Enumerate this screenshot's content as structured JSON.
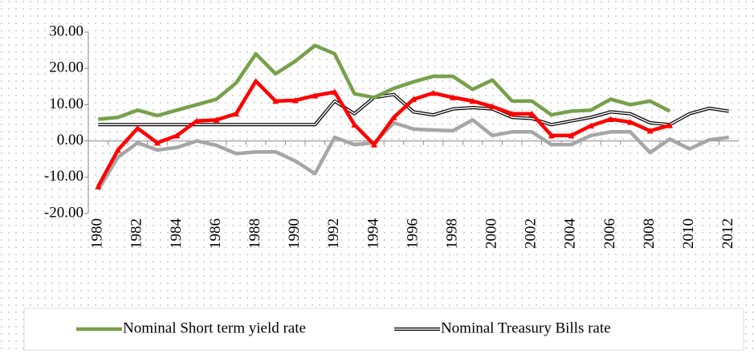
{
  "chart_data": {
    "type": "line",
    "categories": [
      "1980",
      null,
      "1982",
      null,
      "1984",
      null,
      "1986",
      null,
      "1988",
      null,
      "1990",
      null,
      "1992",
      null,
      "1994",
      null,
      "1996",
      null,
      "1998",
      null,
      "2000",
      null,
      "2002",
      null,
      "2004",
      null,
      "2006",
      null,
      "2008",
      null,
      "2010",
      null,
      "2012"
    ],
    "series": [
      {
        "name": "Nominal Short term yield rate",
        "color": "#77a04a",
        "values": [
          6,
          6.5,
          8.5,
          7,
          8.5,
          10,
          11.5,
          16,
          24,
          18.5,
          22,
          26.3,
          24,
          13,
          12,
          14.5,
          16.3,
          17.8,
          17.8,
          14.2,
          16.8,
          11,
          11,
          7.2,
          8.2,
          8.5,
          11.5,
          10,
          11,
          8.2,
          null,
          null,
          null
        ]
      },
      {
        "name": "Nominal Treasury Bills rate",
        "color": "#000000",
        "values": [
          4.5,
          4.5,
          4.5,
          4.5,
          4.5,
          4.5,
          4.5,
          4.5,
          4.5,
          4.5,
          4.5,
          4.5,
          11,
          7.5,
          12,
          12.8,
          8,
          7.2,
          8.8,
          9.2,
          8.8,
          6.5,
          6.2,
          4.5,
          5.5,
          6.5,
          8,
          7.5,
          5,
          4.5,
          7.5,
          9,
          8.2
        ]
      },
      {
        "color": "#ff0000",
        "values": [
          -12.5,
          -2.5,
          3.5,
          -0.5,
          1.5,
          5.5,
          5.8,
          7.5,
          16.5,
          11,
          11.2,
          12.5,
          13.5,
          4.5,
          -1,
          6.5,
          11.5,
          13.2,
          12,
          11,
          9.5,
          7.5,
          7.5,
          1.5,
          1.5,
          4.2,
          6,
          5.2,
          2.8,
          4.3,
          null,
          null,
          null
        ]
      },
      {
        "color": "#a6a6a6",
        "values": [
          -13.5,
          -4.5,
          -0.5,
          -2.5,
          -1.8,
          0,
          -1.2,
          -3.5,
          -3,
          -3,
          -5.5,
          -9,
          1,
          -1,
          -0.5,
          5,
          3.3,
          3,
          2.8,
          5.8,
          1.5,
          2.5,
          2.5,
          -1,
          -1,
          1.5,
          2.5,
          2.5,
          -3.2,
          0.5,
          -2.2,
          0.3,
          1
        ]
      }
    ],
    "ylim": [
      -20,
      30
    ],
    "yticks": [
      {
        "value": -20,
        "label": "-20.00"
      },
      {
        "value": -10,
        "label": "-10.00"
      },
      {
        "value": 0,
        "label": "0.00"
      },
      {
        "value": 10,
        "label": "10.00"
      },
      {
        "value": 20,
        "label": "20.00"
      },
      {
        "value": 30,
        "label": "30.00"
      }
    ]
  }
}
